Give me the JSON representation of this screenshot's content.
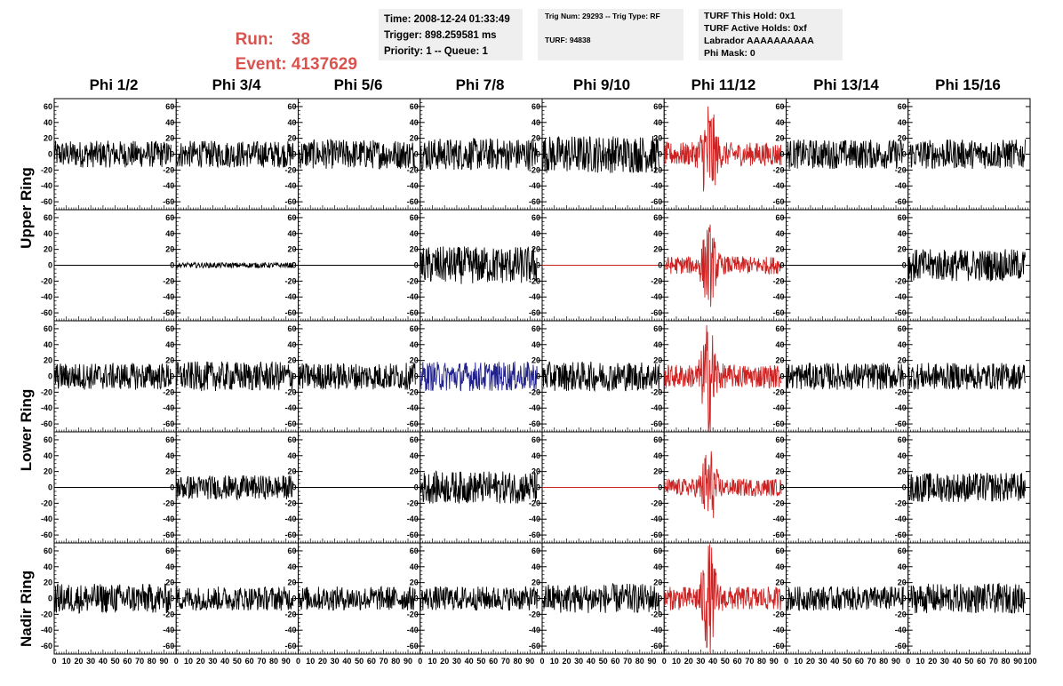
{
  "header": {
    "run_label": "Run:",
    "run_value": "38",
    "event_label": "Event:",
    "event_value": "4137629",
    "time_box": [
      "Time: 2008-12-24 01:33:49",
      "Trigger: 898.259581 ms",
      "Priority: 1 -- Queue: 1"
    ],
    "trig_box": [
      "Trig Num: 29293 -- Trig Type: RF",
      "TURF: 94838"
    ],
    "turf_box": [
      "TURF This Hold: 0x1",
      "TURF Active Holds: 0xf",
      "Labrador AAAAAAAAAA",
      "Phi Mask: 0"
    ]
  },
  "colors": {
    "normal": "#000000",
    "triggered": "#cc2222",
    "highlight": "#22228f",
    "header_red": "#d9534f",
    "box_bg": "#efefef"
  },
  "chart_data": {
    "type": "line",
    "columns": [
      "Phi 1/2",
      "Phi 3/4",
      "Phi 5/6",
      "Phi 7/8",
      "Phi 9/10",
      "Phi 11/12",
      "Phi 13/14",
      "Phi 15/16"
    ],
    "row_groups": [
      {
        "label": "Upper Ring",
        "rows": [
          0,
          1
        ]
      },
      {
        "label": "Lower Ring",
        "rows": [
          2,
          3
        ]
      },
      {
        "label": "Nadir Ring",
        "rows": [
          4
        ]
      }
    ],
    "ylim": [
      -70,
      70
    ],
    "yticks": [
      -60,
      -40,
      -20,
      0,
      20,
      40,
      60
    ],
    "xlim": [
      0,
      100
    ],
    "xtick_labels": [
      "0",
      "10",
      "20",
      "30",
      "40",
      "50",
      "60",
      "70",
      "80",
      "90",
      "100"
    ],
    "last_xtick_label": "100",
    "trace_samples": 260,
    "trace_xrange": [
      0,
      96
    ],
    "panels": [
      [
        {
          "amp": 10,
          "color": "normal"
        },
        {
          "amp": 10,
          "color": "normal"
        },
        {
          "amp": 11,
          "color": "normal"
        },
        {
          "amp": 12,
          "color": "normal"
        },
        {
          "amp": 14,
          "color": "normal"
        },
        {
          "amp": 16,
          "color": "triggered",
          "burst": 1
        },
        {
          "amp": 11,
          "color": "normal"
        },
        {
          "amp": 11,
          "color": "normal"
        }
      ],
      [
        {
          "amp": 0,
          "color": "normal"
        },
        {
          "amp": 2,
          "color": "normal"
        },
        {
          "amp": 0,
          "color": "normal"
        },
        {
          "amp": 14,
          "color": "normal"
        },
        {
          "amp": 0,
          "color": "triggered"
        },
        {
          "amp": 12,
          "color": "triggered",
          "burst": 1
        },
        {
          "amp": 0,
          "color": "normal"
        },
        {
          "amp": 12,
          "color": "normal"
        }
      ],
      [
        {
          "amp": 10,
          "color": "normal"
        },
        {
          "amp": 11,
          "color": "normal"
        },
        {
          "amp": 10,
          "color": "normal"
        },
        {
          "amp": 11,
          "color": "highlight"
        },
        {
          "amp": 11,
          "color": "normal"
        },
        {
          "amp": 16,
          "color": "triggered",
          "burst": 1
        },
        {
          "amp": 10,
          "color": "normal"
        },
        {
          "amp": 10,
          "color": "normal"
        }
      ],
      [
        {
          "amp": 0,
          "color": "normal"
        },
        {
          "amp": 9,
          "color": "normal"
        },
        {
          "amp": 0,
          "color": "normal"
        },
        {
          "amp": 12,
          "color": "normal"
        },
        {
          "amp": 0,
          "color": "triggered"
        },
        {
          "amp": 12,
          "color": "triggered",
          "burst": 1
        },
        {
          "amp": 0,
          "color": "normal"
        },
        {
          "amp": 11,
          "color": "normal"
        }
      ],
      [
        {
          "amp": 11,
          "color": "normal"
        },
        {
          "amp": 9,
          "color": "normal"
        },
        {
          "amp": 9,
          "color": "normal"
        },
        {
          "amp": 9,
          "color": "normal"
        },
        {
          "amp": 11,
          "color": "normal"
        },
        {
          "amp": 16,
          "color": "triggered",
          "burst": 1
        },
        {
          "amp": 9,
          "color": "normal"
        },
        {
          "amp": 11,
          "color": "normal"
        }
      ]
    ]
  }
}
